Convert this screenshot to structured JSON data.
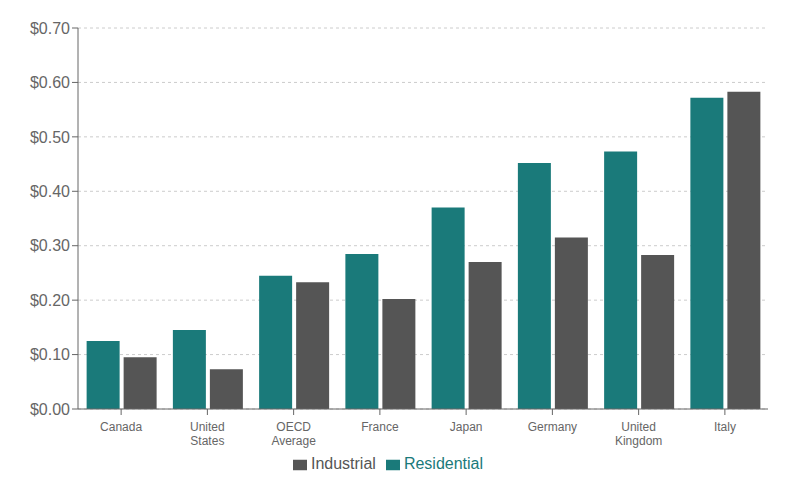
{
  "chart_data": {
    "type": "bar",
    "categories": [
      "Canada",
      "United\nStates",
      "OECD\nAverage",
      "France",
      "Japan",
      "Germany",
      "United\nKingdom",
      "Italy"
    ],
    "series": [
      {
        "name": "Residential",
        "color": "#1a7a7a",
        "values": [
          0.125,
          0.145,
          0.245,
          0.285,
          0.37,
          0.452,
          0.473,
          0.572
        ]
      },
      {
        "name": "Industrial",
        "color": "#555555",
        "values": [
          0.095,
          0.073,
          0.233,
          0.202,
          0.27,
          0.315,
          0.283,
          0.583
        ]
      }
    ],
    "ylim": [
      0,
      0.7
    ],
    "yticks": [
      {
        "value": 0.0,
        "label": "$0.00"
      },
      {
        "value": 0.1,
        "label": "$0.10"
      },
      {
        "value": 0.2,
        "label": "$0.20"
      },
      {
        "value": 0.3,
        "label": "$0.30"
      },
      {
        "value": 0.4,
        "label": "$0.40"
      },
      {
        "value": 0.5,
        "label": "$0.50"
      },
      {
        "value": 0.6,
        "label": "$0.60"
      },
      {
        "value": 0.7,
        "label": "$0.70"
      }
    ],
    "grid": true,
    "legend": "bottom"
  }
}
